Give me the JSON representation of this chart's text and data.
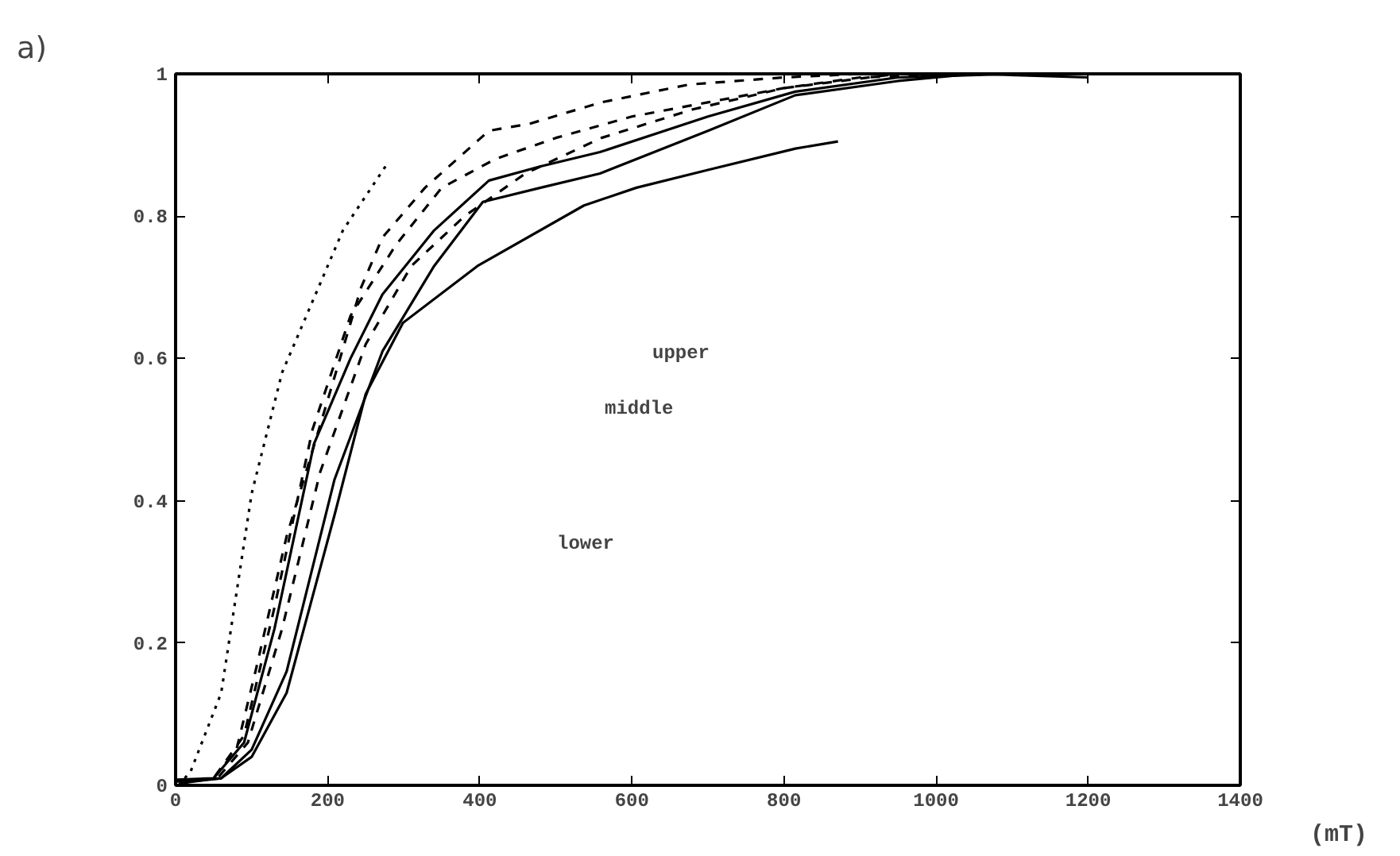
{
  "chart_data": {
    "type": "line",
    "title": "a)",
    "xlabel": "(mT)",
    "xlim": [
      0,
      1400
    ],
    "ylim": [
      0,
      1
    ],
    "xticks": [
      0,
      200,
      400,
      600,
      800,
      1000,
      1200,
      1400
    ],
    "yticks": [
      0,
      0.2,
      0.4,
      0.6,
      0.8,
      1
    ],
    "grid": false,
    "marker": "none",
    "annotations": [
      "upper",
      "middle",
      "lower"
    ],
    "series": [
      {
        "color": "#000000",
        "line_style": "dotted",
        "x": [
          12,
          20,
          60,
          100,
          140,
          180,
          220,
          276
        ],
        "values": [
          0.01,
          0.02,
          0.13,
          0.41,
          0.58,
          0.68,
          0.78,
          0.87
        ]
      },
      {
        "color": "#000000",
        "line_style": "dashed",
        "x": [
          0,
          50,
          80,
          105,
          146,
          194,
          244,
          272,
          328,
          412,
          466,
          560,
          675,
          800,
          900
        ],
        "values": [
          0.005,
          0.01,
          0.05,
          0.16,
          0.35,
          0.52,
          0.7,
          0.77,
          0.84,
          0.92,
          0.93,
          0.96,
          0.985,
          0.995,
          1
        ]
      },
      {
        "color": "#000000",
        "line_style": "dashed",
        "x": [
          4,
          50,
          90,
          130,
          180,
          230,
          290,
          350,
          420,
          500,
          600,
          700,
          800,
          900,
          1050
        ],
        "values": [
          0.002,
          0.01,
          0.07,
          0.25,
          0.5,
          0.66,
          0.76,
          0.84,
          0.88,
          0.91,
          0.94,
          0.96,
          0.98,
          0.995,
          1
        ]
      },
      {
        "color": "#000000",
        "line_style": "dashed",
        "x": [
          8,
          55,
          95,
          140,
          190,
          250,
          310,
          380,
          460,
          560,
          680,
          800,
          950
        ],
        "values": [
          0.004,
          0.01,
          0.06,
          0.22,
          0.44,
          0.62,
          0.73,
          0.8,
          0.86,
          0.91,
          0.95,
          0.98,
          1
        ]
      },
      {
        "color": "#000000",
        "line_style": "solid",
        "x": [
          2,
          50,
          90,
          130,
          182,
          230,
          272,
          340,
          412,
          480,
          558,
          700,
          815,
          950,
          1100
        ],
        "values": [
          0.008,
          0.01,
          0.06,
          0.22,
          0.48,
          0.6,
          0.69,
          0.78,
          0.85,
          0.87,
          0.89,
          0.94,
          0.975,
          0.995,
          1
        ]
      },
      {
        "color": "#000000",
        "line_style": "solid",
        "x": [
          6,
          60,
          100,
          146,
          209,
          272,
          340,
          404,
          480,
          558,
          700,
          815,
          950,
          1050,
          1200
        ],
        "values": [
          0.003,
          0.01,
          0.05,
          0.16,
          0.43,
          0.61,
          0.73,
          0.82,
          0.84,
          0.86,
          0.92,
          0.97,
          0.99,
          1,
          0.995
        ]
      },
      {
        "color": "#000000",
        "line_style": "solid",
        "x": [
          10,
          60,
          100,
          146,
          209,
          250,
          299,
          397,
          537,
          606,
          700,
          815,
          871
        ],
        "values": [
          0.006,
          0.01,
          0.04,
          0.13,
          0.38,
          0.55,
          0.65,
          0.73,
          0.815,
          0.84,
          0.865,
          0.895,
          0.905
        ]
      }
    ]
  }
}
